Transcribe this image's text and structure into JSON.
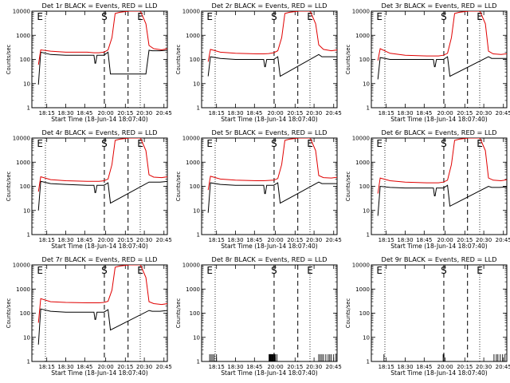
{
  "chart_data": [
    {
      "type": "line",
      "title": "Det 1r BLACK = Events, RED = LLD",
      "xlabel": "Start Time (18-Jun-14 18:07:40)",
      "ylabel": "Counts/sec",
      "ylim": [
        1,
        10000
      ],
      "y_log": true,
      "yticks": [
        "1",
        "10",
        "100",
        "1000",
        "10000"
      ],
      "xticks": [
        "18:15",
        "18:30",
        "18:45",
        "20:00",
        "20:15",
        "20:30",
        "20:45"
      ],
      "markers": [
        {
          "label": "E",
          "hour": 18.17
        },
        {
          "label": "S",
          "hour": 20.16
        },
        {
          "label": "E",
          "hour": 20.56
        }
      ],
      "series": [
        {
          "name": "BLACK = Events",
          "color": "#000000",
          "segments": [
            {
              "x": [
                18.14,
                18.17,
                18.3,
                18.5,
                18.9,
                19.2,
                19.35,
                19.38,
                19.47,
                19.5,
                19.7,
                19.9,
                20.03,
                20.06
              ],
              " y": []
            }
          ]
        }
      ]
    }
  ]
}
